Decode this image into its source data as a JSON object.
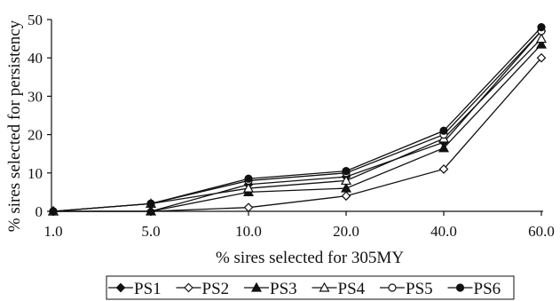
{
  "chart_data": {
    "type": "line",
    "categories": [
      "1.0",
      "5.0",
      "10.0",
      "20.0",
      "40.0",
      "60.0"
    ],
    "series": [
      {
        "name": "PS1",
        "marker": "diamond-filled",
        "values": [
          0,
          0,
          7,
          9,
          18,
          47
        ]
      },
      {
        "name": "PS2",
        "marker": "diamond-open",
        "values": [
          0,
          0,
          1,
          4,
          11,
          40
        ]
      },
      {
        "name": "PS3",
        "marker": "triangle-filled",
        "values": [
          0,
          0,
          5,
          6,
          16.5,
          43.5
        ]
      },
      {
        "name": "PS4",
        "marker": "triangle-open",
        "values": [
          0,
          2,
          6,
          8,
          19,
          45
        ]
      },
      {
        "name": "PS5",
        "marker": "circle-open",
        "values": [
          0,
          2,
          8,
          10,
          20,
          47
        ]
      },
      {
        "name": "PS6",
        "marker": "circle-filled",
        "values": [
          0,
          2,
          8.5,
          10.5,
          21,
          48
        ]
      }
    ],
    "xlabel": "% sires selected for 305MY",
    "ylabel": "% sires selected for persistency",
    "ylim": [
      0,
      50
    ],
    "yticks": [
      "0",
      "10",
      "20",
      "30",
      "40",
      "50"
    ],
    "grid": false,
    "legend": "bottom",
    "line_color": "#111111"
  }
}
